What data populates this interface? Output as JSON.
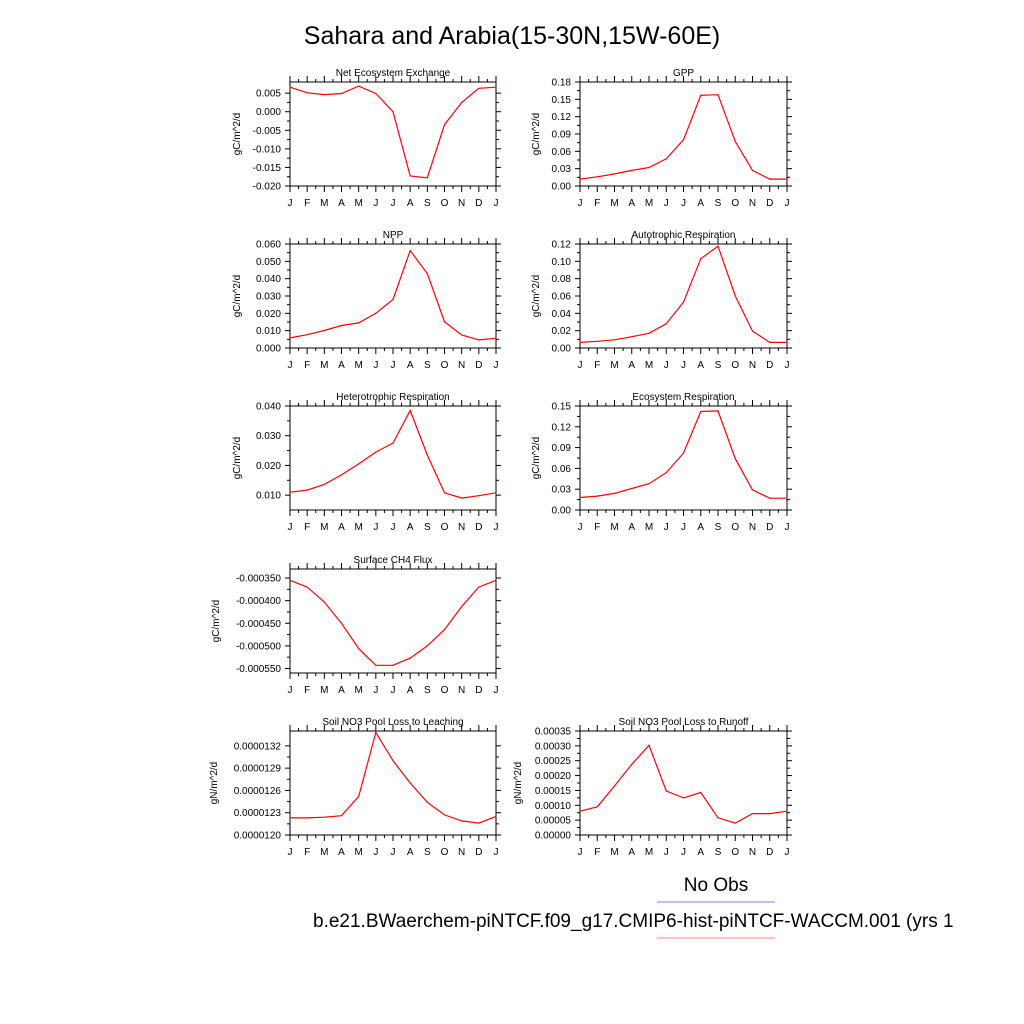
{
  "page_title": "Sahara and Arabia(15-30N,15W-60E)",
  "legend": {
    "label": "No Obs",
    "caption": "b.e21.BWaerchem-piNTCF.f09_g17.CMIP6-hist-piNTCF-WACCM.001 (yrs 1",
    "colors": {
      "obs_line": "#8080ff",
      "model_line": "#ff8080"
    }
  },
  "colors": {
    "series": "#ff0000",
    "axis": "#000000"
  },
  "chart_data": [
    {
      "type": "line",
      "title": "Net Ecosystem Exchange",
      "ylabel": "gC/m^2/d",
      "categories": [
        "J",
        "F",
        "M",
        "A",
        "M",
        "J",
        "J",
        "A",
        "S",
        "O",
        "N",
        "D",
        "J"
      ],
      "ylim": [
        -0.02,
        0.008
      ],
      "yticks": [
        0.005,
        0.0,
        -0.005,
        -0.01,
        -0.015,
        -0.02
      ],
      "ytick_labels": [
        "0.005",
        "0.000",
        "-0.005",
        "-0.010",
        "-0.015",
        "-0.020"
      ],
      "values": [
        0.0066,
        0.0051,
        0.0046,
        0.0049,
        0.0069,
        0.0049,
        0.0,
        -0.0173,
        -0.0178,
        -0.0035,
        0.0025,
        0.0063,
        0.0066
      ]
    },
    {
      "type": "line",
      "title": "GPP",
      "ylabel": "gC/m^2/d",
      "categories": [
        "J",
        "F",
        "M",
        "A",
        "M",
        "J",
        "J",
        "A",
        "S",
        "O",
        "N",
        "D",
        "J"
      ],
      "ylim": [
        0.0,
        0.18
      ],
      "yticks": [
        0.18,
        0.15,
        0.12,
        0.09,
        0.06,
        0.03,
        0.0
      ],
      "ytick_labels": [
        "0.18",
        "0.15",
        "0.12",
        "0.09",
        "0.06",
        "0.03",
        "0.00"
      ],
      "values": [
        0.012,
        0.016,
        0.021,
        0.027,
        0.032,
        0.047,
        0.08,
        0.157,
        0.158,
        0.077,
        0.027,
        0.012,
        0.012
      ]
    },
    {
      "type": "line",
      "title": "NPP",
      "ylabel": "gC/m^2/d",
      "categories": [
        "J",
        "F",
        "M",
        "A",
        "M",
        "J",
        "J",
        "A",
        "S",
        "O",
        "N",
        "D",
        "J"
      ],
      "ylim": [
        0.0,
        0.06
      ],
      "yticks": [
        0.06,
        0.05,
        0.04,
        0.03,
        0.02,
        0.01,
        0.0
      ],
      "ytick_labels": [
        "0.060",
        "0.050",
        "0.040",
        "0.030",
        "0.020",
        "0.010",
        "0.000"
      ],
      "values": [
        0.0058,
        0.0077,
        0.0101,
        0.013,
        0.0145,
        0.02,
        0.028,
        0.0562,
        0.043,
        0.0152,
        0.0075,
        0.0047,
        0.0056
      ]
    },
    {
      "type": "line",
      "title": "Autotrophic Respiration",
      "ylabel": "gC/m^2/d",
      "categories": [
        "J",
        "F",
        "M",
        "A",
        "M",
        "J",
        "J",
        "A",
        "S",
        "O",
        "N",
        "D",
        "J"
      ],
      "ylim": [
        0.0,
        0.12
      ],
      "yticks": [
        0.12,
        0.1,
        0.08,
        0.06,
        0.04,
        0.02,
        0.0
      ],
      "ytick_labels": [
        "0.12",
        "0.10",
        "0.08",
        "0.06",
        "0.04",
        "0.02",
        "0.00"
      ],
      "values": [
        0.0065,
        0.0077,
        0.0095,
        0.013,
        0.017,
        0.028,
        0.053,
        0.103,
        0.1175,
        0.06,
        0.0195,
        0.0065,
        0.0065
      ]
    },
    {
      "type": "line",
      "title": "Heterotrophic Respiration",
      "ylabel": "gC/m^2/d",
      "categories": [
        "J",
        "F",
        "M",
        "A",
        "M",
        "J",
        "J",
        "A",
        "S",
        "O",
        "N",
        "D",
        "J"
      ],
      "ylim": [
        0.005,
        0.04
      ],
      "yticks": [
        0.04,
        0.03,
        0.02,
        0.01
      ],
      "ytick_labels": [
        "0.040",
        "0.030",
        "0.020",
        "0.010"
      ],
      "values": [
        0.011,
        0.0117,
        0.0136,
        0.0168,
        0.0205,
        0.0245,
        0.0275,
        0.0385,
        0.0235,
        0.0108,
        0.009,
        0.0098,
        0.0108
      ]
    },
    {
      "type": "line",
      "title": "Ecosystem Respiration",
      "ylabel": "gC/m^2/d",
      "categories": [
        "J",
        "F",
        "M",
        "A",
        "M",
        "J",
        "J",
        "A",
        "S",
        "O",
        "N",
        "D",
        "J"
      ],
      "ylim": [
        0.0,
        0.15
      ],
      "yticks": [
        0.15,
        0.12,
        0.09,
        0.06,
        0.03,
        0.0
      ],
      "ytick_labels": [
        "0.15",
        "0.12",
        "0.09",
        "0.06",
        "0.03",
        "0.00"
      ],
      "values": [
        0.018,
        0.02,
        0.024,
        0.031,
        0.038,
        0.054,
        0.082,
        0.142,
        0.143,
        0.074,
        0.029,
        0.017,
        0.017
      ]
    },
    {
      "type": "line",
      "title": "Surface CH4 Flux",
      "ylabel": "gC/m^2/d",
      "categories": [
        "J",
        "F",
        "M",
        "A",
        "M",
        "J",
        "J",
        "A",
        "S",
        "O",
        "N",
        "D",
        "J"
      ],
      "ylim": [
        -0.00056,
        -0.00033
      ],
      "yticks": [
        -0.00035,
        -0.0004,
        -0.00045,
        -0.0005,
        -0.00055
      ],
      "ytick_labels": [
        "-0.000350",
        "-0.000400",
        "-0.000450",
        "-0.000500",
        "-0.000550"
      ],
      "values": [
        -0.000355,
        -0.00037,
        -0.000403,
        -0.00045,
        -0.000506,
        -0.000543,
        -0.000543,
        -0.000527,
        -0.0005,
        -0.000464,
        -0.000413,
        -0.00037,
        -0.000355
      ]
    },
    {
      "type": "line",
      "title": "Soil NO3 Pool Loss to Leaching",
      "ylabel": "gN/m^2/d",
      "categories": [
        "J",
        "F",
        "M",
        "A",
        "M",
        "J",
        "J",
        "A",
        "S",
        "O",
        "N",
        "D",
        "J"
      ],
      "ylim": [
        1.2e-05,
        1.34e-05
      ],
      "yticks": [
        1.32e-05,
        1.29e-05,
        1.26e-05,
        1.23e-05,
        1.2e-05
      ],
      "ytick_labels": [
        "0.0000132",
        "0.0000129",
        "0.0000126",
        "0.0000123",
        "0.0000120"
      ],
      "values": [
        1.223e-05,
        1.223e-05,
        1.224e-05,
        1.226e-05,
        1.252e-05,
        1.338e-05,
        1.3e-05,
        1.27e-05,
        1.244e-05,
        1.227e-05,
        1.219e-05,
        1.216e-05,
        1.225e-05
      ]
    },
    {
      "type": "line",
      "title": "Soil NO3 Pool Loss to Runoff",
      "ylabel": "gN/m^2/d",
      "categories": [
        "J",
        "F",
        "M",
        "A",
        "M",
        "J",
        "J",
        "A",
        "S",
        "O",
        "N",
        "D",
        "J"
      ],
      "ylim": [
        0.0,
        0.00035
      ],
      "yticks": [
        0.00035,
        0.0003,
        0.00025,
        0.0002,
        0.00015,
        0.0001,
        5e-05,
        0.0
      ],
      "ytick_labels": [
        "0.00035",
        "0.00030",
        "0.00025",
        "0.00020",
        "0.00015",
        "0.00010",
        "0.00005",
        "0.00000"
      ],
      "values": [
        8e-05,
        9.5e-05,
        0.000165,
        0.000238,
        0.000302,
        0.000148,
        0.000125,
        0.000143,
        5.8e-05,
        4e-05,
        7.2e-05,
        7.2e-05,
        8e-05
      ]
    }
  ]
}
